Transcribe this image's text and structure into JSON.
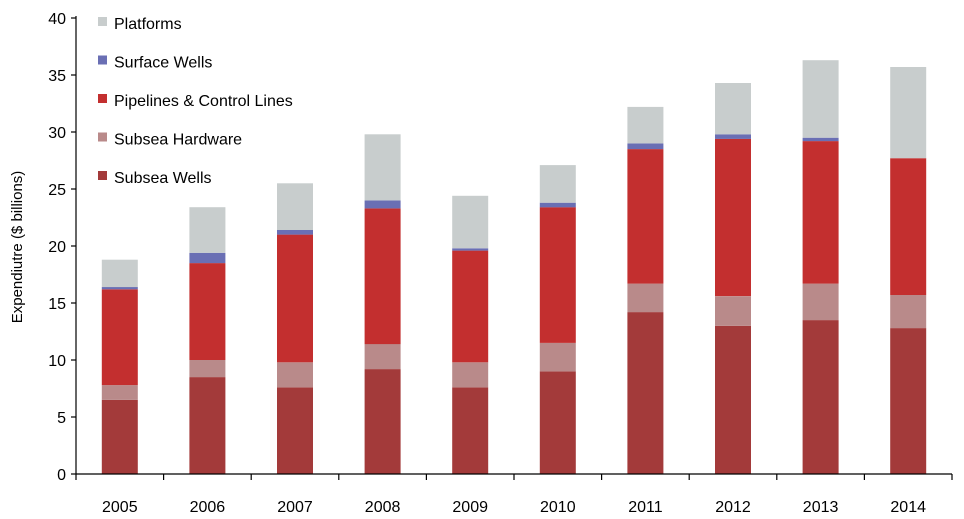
{
  "chart_data": {
    "type": "bar",
    "stacked": true,
    "title": "",
    "xlabel": "",
    "ylabel": "Expendiutre ($ billions)",
    "ylim": [
      0,
      40
    ],
    "yticks": [
      "0",
      "5",
      "10",
      "15",
      "20",
      "25",
      "30",
      "35",
      "40"
    ],
    "categories": [
      "2005",
      "2006",
      "2007",
      "2008",
      "2009",
      "2010",
      "2011",
      "2012",
      "2013",
      "2014"
    ],
    "grid": false,
    "legend_position": "top-left",
    "series": [
      {
        "name": "Subsea Wells",
        "color": "#a33a3a",
        "values": [
          6.5,
          8.5,
          7.6,
          9.2,
          7.6,
          9.0,
          14.2,
          13.0,
          13.5,
          12.8
        ]
      },
      {
        "name": "Subsea Hardware",
        "color": "#b98a8a",
        "values": [
          1.3,
          1.5,
          2.2,
          2.2,
          2.2,
          2.5,
          2.5,
          2.6,
          3.2,
          2.9
        ]
      },
      {
        "name": "Pipelines & Control Lines",
        "color": "#c32f2f",
        "values": [
          8.4,
          8.5,
          11.2,
          11.9,
          9.8,
          11.9,
          11.8,
          13.8,
          12.5,
          12.0
        ]
      },
      {
        "name": "Surface Wells",
        "color": "#6a6fb4",
        "values": [
          0.2,
          0.9,
          0.4,
          0.7,
          0.2,
          0.4,
          0.5,
          0.4,
          0.3,
          0.0
        ]
      },
      {
        "name": "Platforms",
        "color": "#c8cdcd",
        "values": [
          2.4,
          4.0,
          4.1,
          5.8,
          4.6,
          3.3,
          3.2,
          4.5,
          6.8,
          8.0
        ]
      }
    ],
    "legend_order": [
      "Platforms",
      "Surface Wells",
      "Pipelines & Control Lines",
      "Subsea Hardware",
      "Subsea Wells"
    ]
  }
}
